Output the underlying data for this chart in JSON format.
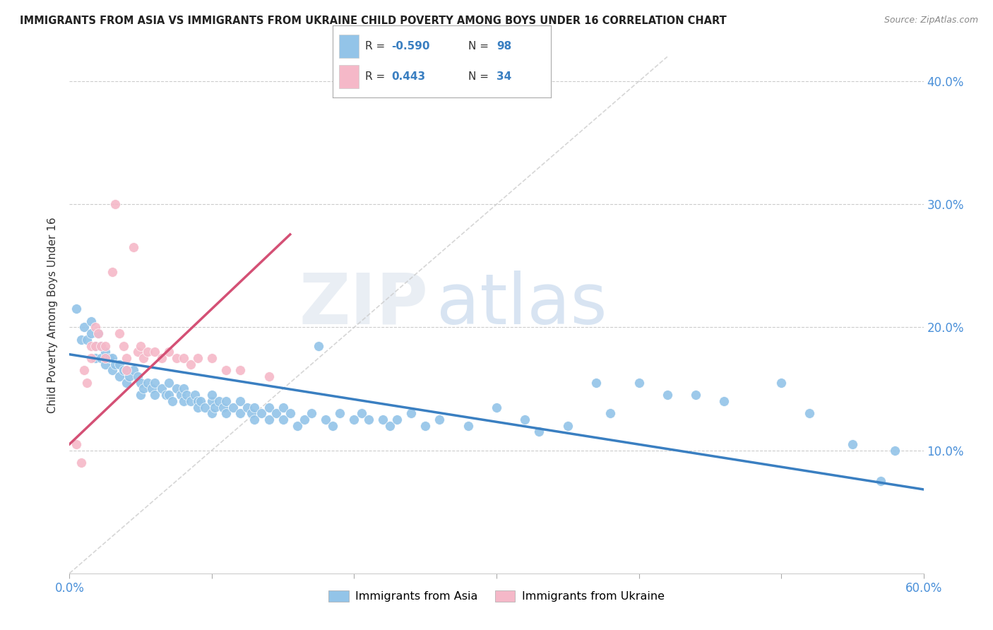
{
  "title": "IMMIGRANTS FROM ASIA VS IMMIGRANTS FROM UKRAINE CHILD POVERTY AMONG BOYS UNDER 16 CORRELATION CHART",
  "source": "Source: ZipAtlas.com",
  "ylabel": "Child Poverty Among Boys Under 16",
  "xlim": [
    0.0,
    0.6
  ],
  "ylim": [
    0.0,
    0.42
  ],
  "color_asia": "#93c4e8",
  "color_ukraine": "#f5b8c8",
  "line_color_asia": "#3a7fc1",
  "line_color_ukraine": "#d45075",
  "line_color_diagonal": "#cccccc",
  "asia_slope": -0.183,
  "asia_intercept": 0.178,
  "ukraine_slope": 1.1,
  "ukraine_intercept": 0.105,
  "ukraine_line_xmax": 0.155,
  "asia_scatter": [
    [
      0.005,
      0.215
    ],
    [
      0.008,
      0.19
    ],
    [
      0.01,
      0.2
    ],
    [
      0.012,
      0.19
    ],
    [
      0.015,
      0.205
    ],
    [
      0.015,
      0.195
    ],
    [
      0.018,
      0.175
    ],
    [
      0.018,
      0.185
    ],
    [
      0.02,
      0.195
    ],
    [
      0.022,
      0.185
    ],
    [
      0.022,
      0.175
    ],
    [
      0.025,
      0.18
    ],
    [
      0.025,
      0.17
    ],
    [
      0.028,
      0.175
    ],
    [
      0.03,
      0.175
    ],
    [
      0.03,
      0.165
    ],
    [
      0.032,
      0.17
    ],
    [
      0.035,
      0.17
    ],
    [
      0.035,
      0.16
    ],
    [
      0.038,
      0.165
    ],
    [
      0.04,
      0.165
    ],
    [
      0.04,
      0.155
    ],
    [
      0.042,
      0.16
    ],
    [
      0.045,
      0.165
    ],
    [
      0.048,
      0.16
    ],
    [
      0.05,
      0.155
    ],
    [
      0.05,
      0.145
    ],
    [
      0.052,
      0.15
    ],
    [
      0.055,
      0.155
    ],
    [
      0.058,
      0.15
    ],
    [
      0.06,
      0.155
    ],
    [
      0.06,
      0.145
    ],
    [
      0.065,
      0.15
    ],
    [
      0.068,
      0.145
    ],
    [
      0.07,
      0.155
    ],
    [
      0.07,
      0.145
    ],
    [
      0.072,
      0.14
    ],
    [
      0.075,
      0.15
    ],
    [
      0.078,
      0.145
    ],
    [
      0.08,
      0.15
    ],
    [
      0.08,
      0.14
    ],
    [
      0.082,
      0.145
    ],
    [
      0.085,
      0.14
    ],
    [
      0.088,
      0.145
    ],
    [
      0.09,
      0.14
    ],
    [
      0.09,
      0.135
    ],
    [
      0.092,
      0.14
    ],
    [
      0.095,
      0.135
    ],
    [
      0.1,
      0.14
    ],
    [
      0.1,
      0.13
    ],
    [
      0.1,
      0.145
    ],
    [
      0.102,
      0.135
    ],
    [
      0.105,
      0.14
    ],
    [
      0.108,
      0.135
    ],
    [
      0.11,
      0.14
    ],
    [
      0.11,
      0.13
    ],
    [
      0.115,
      0.135
    ],
    [
      0.12,
      0.14
    ],
    [
      0.12,
      0.13
    ],
    [
      0.125,
      0.135
    ],
    [
      0.128,
      0.13
    ],
    [
      0.13,
      0.135
    ],
    [
      0.13,
      0.125
    ],
    [
      0.135,
      0.13
    ],
    [
      0.14,
      0.135
    ],
    [
      0.14,
      0.125
    ],
    [
      0.145,
      0.13
    ],
    [
      0.15,
      0.135
    ],
    [
      0.15,
      0.125
    ],
    [
      0.155,
      0.13
    ],
    [
      0.16,
      0.12
    ],
    [
      0.165,
      0.125
    ],
    [
      0.17,
      0.13
    ],
    [
      0.175,
      0.185
    ],
    [
      0.18,
      0.125
    ],
    [
      0.185,
      0.12
    ],
    [
      0.19,
      0.13
    ],
    [
      0.2,
      0.125
    ],
    [
      0.205,
      0.13
    ],
    [
      0.21,
      0.125
    ],
    [
      0.22,
      0.125
    ],
    [
      0.225,
      0.12
    ],
    [
      0.23,
      0.125
    ],
    [
      0.24,
      0.13
    ],
    [
      0.25,
      0.12
    ],
    [
      0.26,
      0.125
    ],
    [
      0.28,
      0.12
    ],
    [
      0.3,
      0.135
    ],
    [
      0.32,
      0.125
    ],
    [
      0.33,
      0.115
    ],
    [
      0.35,
      0.12
    ],
    [
      0.37,
      0.155
    ],
    [
      0.38,
      0.13
    ],
    [
      0.4,
      0.155
    ],
    [
      0.42,
      0.145
    ],
    [
      0.44,
      0.145
    ],
    [
      0.46,
      0.14
    ],
    [
      0.5,
      0.155
    ],
    [
      0.52,
      0.13
    ],
    [
      0.55,
      0.105
    ],
    [
      0.57,
      0.075
    ],
    [
      0.58,
      0.1
    ]
  ],
  "ukraine_scatter": [
    [
      0.005,
      0.105
    ],
    [
      0.008,
      0.09
    ],
    [
      0.01,
      0.165
    ],
    [
      0.012,
      0.155
    ],
    [
      0.015,
      0.185
    ],
    [
      0.015,
      0.175
    ],
    [
      0.018,
      0.2
    ],
    [
      0.018,
      0.185
    ],
    [
      0.02,
      0.195
    ],
    [
      0.022,
      0.185
    ],
    [
      0.025,
      0.185
    ],
    [
      0.025,
      0.175
    ],
    [
      0.03,
      0.245
    ],
    [
      0.032,
      0.3
    ],
    [
      0.035,
      0.195
    ],
    [
      0.038,
      0.185
    ],
    [
      0.04,
      0.175
    ],
    [
      0.04,
      0.165
    ],
    [
      0.045,
      0.265
    ],
    [
      0.048,
      0.18
    ],
    [
      0.05,
      0.185
    ],
    [
      0.052,
      0.175
    ],
    [
      0.055,
      0.18
    ],
    [
      0.06,
      0.18
    ],
    [
      0.065,
      0.175
    ],
    [
      0.07,
      0.18
    ],
    [
      0.075,
      0.175
    ],
    [
      0.08,
      0.175
    ],
    [
      0.085,
      0.17
    ],
    [
      0.09,
      0.175
    ],
    [
      0.1,
      0.175
    ],
    [
      0.11,
      0.165
    ],
    [
      0.12,
      0.165
    ],
    [
      0.14,
      0.16
    ]
  ]
}
